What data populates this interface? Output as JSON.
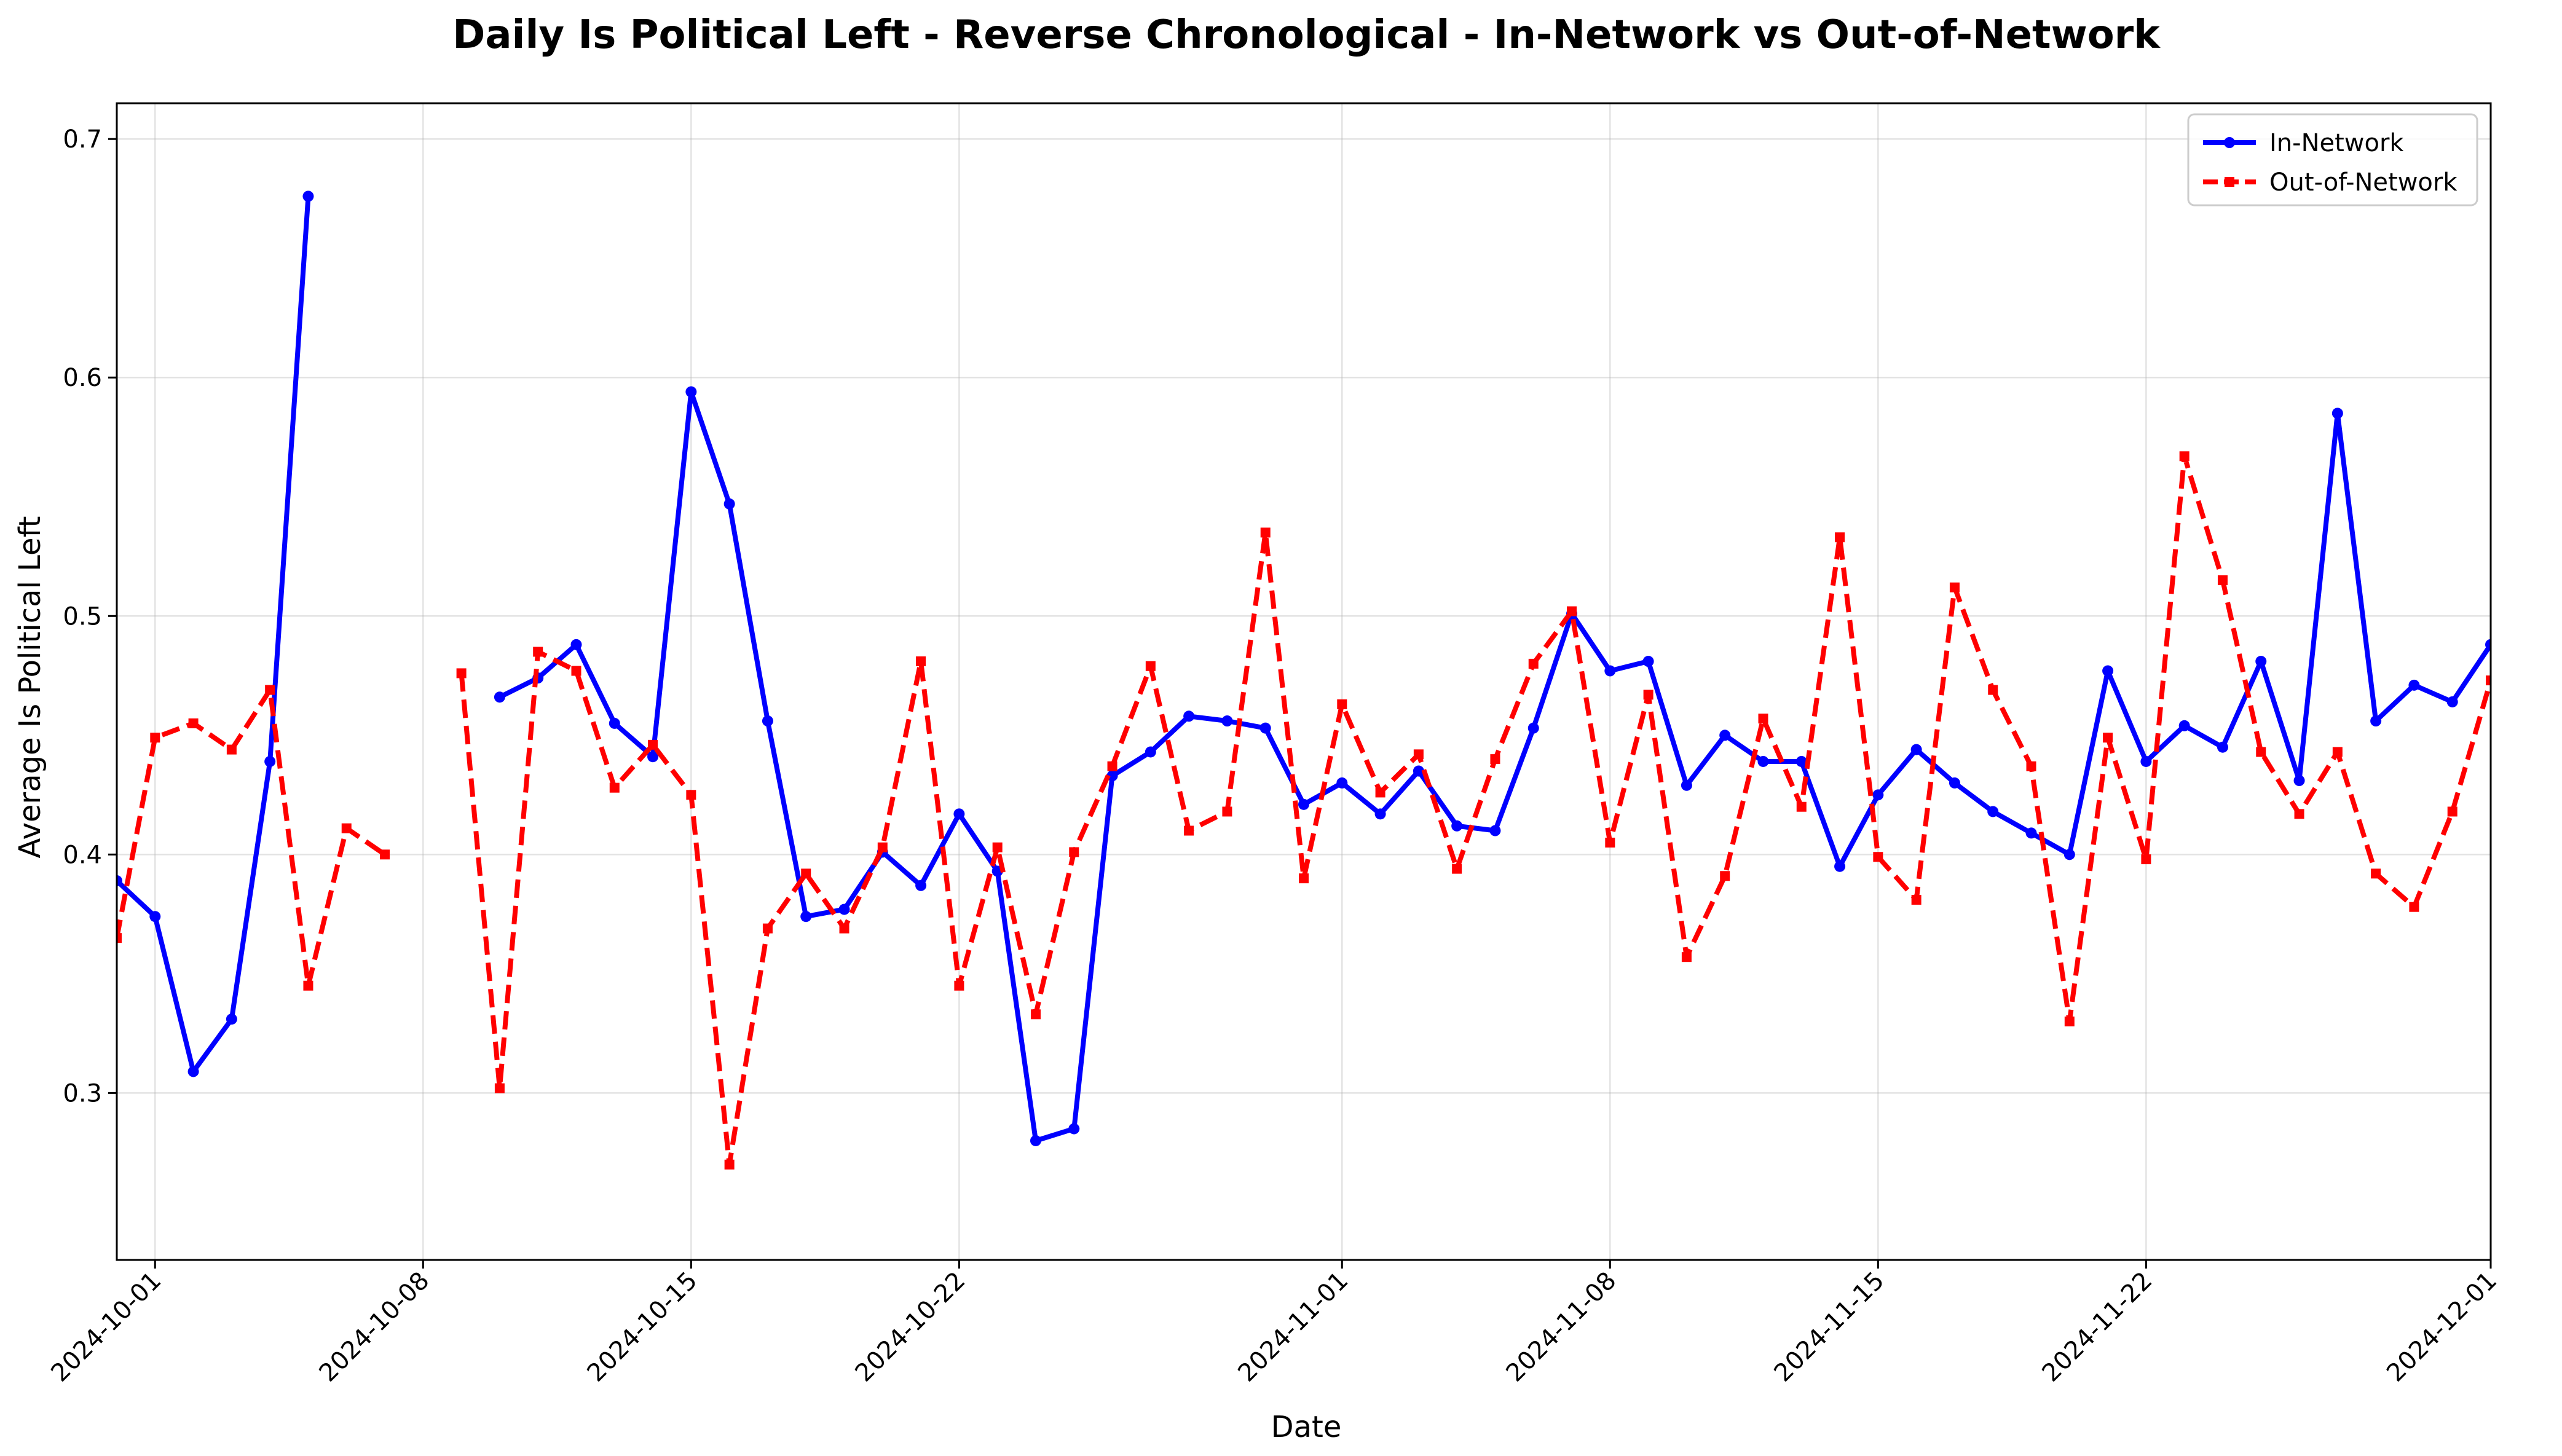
{
  "chart_data": {
    "type": "line",
    "title": "Daily Is Political Left - Reverse Chronological - In-Network vs Out-of-Network",
    "xlabel": "Date",
    "ylabel": "Average Is Political Left",
    "x_range": [
      "2024-09-30",
      "2024-12-01"
    ],
    "ylim": [
      0.23,
      0.715
    ],
    "x_ticks": [
      "2024-10-01",
      "2024-10-08",
      "2024-10-15",
      "2024-10-22",
      "2024-11-01",
      "2024-11-08",
      "2024-11-15",
      "2024-11-22",
      "2024-12-01"
    ],
    "y_ticks": [
      "0.3",
      "0.4",
      "0.5",
      "0.6",
      "0.7"
    ],
    "grid": true,
    "legend_position": "top-right",
    "series": [
      {
        "name": "In-Network",
        "color": "#0000ff",
        "style": "solid",
        "marker": "circle",
        "points": [
          [
            "2024-09-30",
            0.389
          ],
          [
            "2024-10-01",
            0.374
          ],
          [
            "2024-10-02",
            0.309
          ],
          [
            "2024-10-03",
            0.331
          ],
          [
            "2024-10-04",
            0.439
          ],
          [
            "2024-10-05",
            0.676
          ],
          [
            "2024-10-10",
            0.466
          ],
          [
            "2024-10-11",
            0.474
          ],
          [
            "2024-10-12",
            0.488
          ],
          [
            "2024-10-13",
            0.455
          ],
          [
            "2024-10-14",
            0.441
          ],
          [
            "2024-10-15",
            0.594
          ],
          [
            "2024-10-16",
            0.547
          ],
          [
            "2024-10-17",
            0.456
          ],
          [
            "2024-10-18",
            0.374
          ],
          [
            "2024-10-19",
            0.377
          ],
          [
            "2024-10-20",
            0.401
          ],
          [
            "2024-10-21",
            0.387
          ],
          [
            "2024-10-22",
            0.417
          ],
          [
            "2024-10-23",
            0.393
          ],
          [
            "2024-10-24",
            0.28
          ],
          [
            "2024-10-25",
            0.285
          ],
          [
            "2024-10-26",
            0.433
          ],
          [
            "2024-10-27",
            0.443
          ],
          [
            "2024-10-28",
            0.458
          ],
          [
            "2024-10-29",
            0.456
          ],
          [
            "2024-10-30",
            0.453
          ],
          [
            "2024-10-31",
            0.421
          ],
          [
            "2024-11-01",
            0.43
          ],
          [
            "2024-11-02",
            0.417
          ],
          [
            "2024-11-03",
            0.435
          ],
          [
            "2024-11-04",
            0.412
          ],
          [
            "2024-11-05",
            0.41
          ],
          [
            "2024-11-06",
            0.453
          ],
          [
            "2024-11-07",
            0.501
          ],
          [
            "2024-11-08",
            0.477
          ],
          [
            "2024-11-09",
            0.481
          ],
          [
            "2024-11-10",
            0.429
          ],
          [
            "2024-11-11",
            0.45
          ],
          [
            "2024-11-12",
            0.439
          ],
          [
            "2024-11-13",
            0.439
          ],
          [
            "2024-11-14",
            0.395
          ],
          [
            "2024-11-15",
            0.425
          ],
          [
            "2024-11-16",
            0.444
          ],
          [
            "2024-11-17",
            0.43
          ],
          [
            "2024-11-18",
            0.418
          ],
          [
            "2024-11-19",
            0.409
          ],
          [
            "2024-11-20",
            0.4
          ],
          [
            "2024-11-21",
            0.477
          ],
          [
            "2024-11-22",
            0.439
          ],
          [
            "2024-11-23",
            0.454
          ],
          [
            "2024-11-24",
            0.445
          ],
          [
            "2024-11-25",
            0.481
          ],
          [
            "2024-11-26",
            0.431
          ],
          [
            "2024-11-27",
            0.585
          ],
          [
            "2024-11-28",
            0.456
          ],
          [
            "2024-11-29",
            0.471
          ],
          [
            "2024-11-30",
            0.464
          ],
          [
            "2024-12-01",
            0.488
          ]
        ]
      },
      {
        "name": "Out-of-Network",
        "color": "#ff0000",
        "style": "dashed",
        "marker": "square",
        "points": [
          [
            "2024-09-30",
            0.365
          ],
          [
            "2024-10-01",
            0.449
          ],
          [
            "2024-10-02",
            0.455
          ],
          [
            "2024-10-03",
            0.444
          ],
          [
            "2024-10-04",
            0.469
          ],
          [
            "2024-10-05",
            0.345
          ],
          [
            "2024-10-06",
            0.411
          ],
          [
            "2024-10-07",
            0.4
          ],
          [
            "2024-10-09",
            0.476
          ],
          [
            "2024-10-10",
            0.302
          ],
          [
            "2024-10-11",
            0.485
          ],
          [
            "2024-10-12",
            0.477
          ],
          [
            "2024-10-13",
            0.428
          ],
          [
            "2024-10-14",
            0.446
          ],
          [
            "2024-10-15",
            0.425
          ],
          [
            "2024-10-16",
            0.27
          ],
          [
            "2024-10-17",
            0.369
          ],
          [
            "2024-10-18",
            0.392
          ],
          [
            "2024-10-19",
            0.369
          ],
          [
            "2024-10-20",
            0.403
          ],
          [
            "2024-10-21",
            0.481
          ],
          [
            "2024-10-22",
            0.345
          ],
          [
            "2024-10-23",
            0.403
          ],
          [
            "2024-10-24",
            0.333
          ],
          [
            "2024-10-25",
            0.401
          ],
          [
            "2024-10-26",
            0.437
          ],
          [
            "2024-10-27",
            0.479
          ],
          [
            "2024-10-28",
            0.41
          ],
          [
            "2024-10-29",
            0.418
          ],
          [
            "2024-10-30",
            0.535
          ],
          [
            "2024-10-31",
            0.39
          ],
          [
            "2024-11-01",
            0.463
          ],
          [
            "2024-11-02",
            0.426
          ],
          [
            "2024-11-03",
            0.442
          ],
          [
            "2024-11-04",
            0.394
          ],
          [
            "2024-11-05",
            0.44
          ],
          [
            "2024-11-06",
            0.48
          ],
          [
            "2024-11-07",
            0.502
          ],
          [
            "2024-11-08",
            0.405
          ],
          [
            "2024-11-09",
            0.467
          ],
          [
            "2024-11-10",
            0.357
          ],
          [
            "2024-11-11",
            0.391
          ],
          [
            "2024-11-12",
            0.457
          ],
          [
            "2024-11-13",
            0.42
          ],
          [
            "2024-11-14",
            0.533
          ],
          [
            "2024-11-15",
            0.399
          ],
          [
            "2024-11-16",
            0.381
          ],
          [
            "2024-11-17",
            0.512
          ],
          [
            "2024-11-18",
            0.469
          ],
          [
            "2024-11-19",
            0.437
          ],
          [
            "2024-11-20",
            0.33
          ],
          [
            "2024-11-21",
            0.449
          ],
          [
            "2024-11-22",
            0.398
          ],
          [
            "2024-11-23",
            0.567
          ],
          [
            "2024-11-24",
            0.515
          ],
          [
            "2024-11-25",
            0.443
          ],
          [
            "2024-11-26",
            0.417
          ],
          [
            "2024-11-27",
            0.443
          ],
          [
            "2024-11-28",
            0.392
          ],
          [
            "2024-11-29",
            0.378
          ],
          [
            "2024-11-30",
            0.418
          ],
          [
            "2024-12-01",
            0.473
          ]
        ]
      }
    ]
  }
}
